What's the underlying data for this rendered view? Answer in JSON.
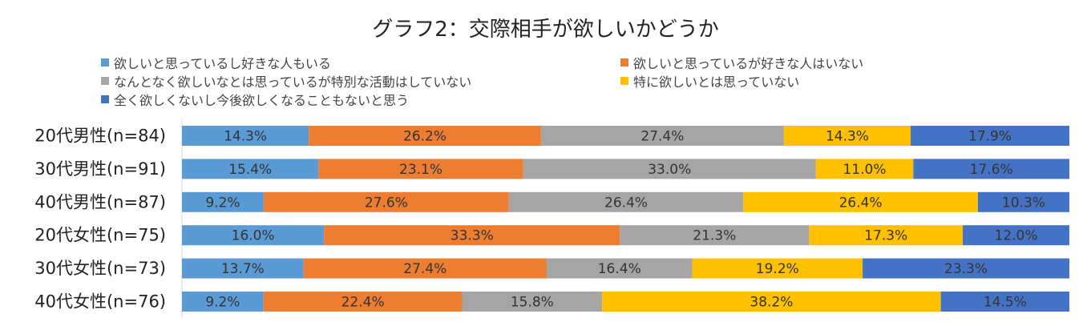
{
  "chart_data": {
    "type": "bar",
    "orientation": "horizontal",
    "stacked": true,
    "percent_stacked": true,
    "title": "グラフ2：交際相手が欲しいかどうか",
    "categories": [
      "20代男性(n=84)",
      "30代男性(n=91)",
      "40代男性(n=87)",
      "20代女性(n=75)",
      "30代女性(n=73)",
      "40代女性(n=76)"
    ],
    "series": [
      {
        "name": "欲しいと思っているし好きな人もいる",
        "color": "#5B9BD5",
        "values": [
          14.3,
          15.4,
          9.2,
          16.0,
          13.7,
          9.2
        ]
      },
      {
        "name": "欲しいと思っているが好きな人はいない",
        "color": "#ED7D31",
        "values": [
          26.2,
          23.1,
          27.6,
          33.3,
          27.4,
          22.4
        ]
      },
      {
        "name": "なんとなく欲しいなとは思っているが特別な活動はしていない",
        "color": "#A5A5A5",
        "values": [
          27.4,
          33.0,
          26.4,
          21.3,
          16.4,
          15.8
        ]
      },
      {
        "name": "特に欲しいとは思っていない",
        "color": "#FFC000",
        "values": [
          14.3,
          11.0,
          26.4,
          17.3,
          19.2,
          38.2
        ]
      },
      {
        "name": "全く欲しくないし今後欲しくなることもないと思う",
        "color": "#4472C4",
        "values": [
          17.9,
          17.6,
          10.3,
          12.0,
          23.3,
          14.5
        ]
      }
    ],
    "value_suffix": "%",
    "legend_position": "top",
    "grid": false
  }
}
